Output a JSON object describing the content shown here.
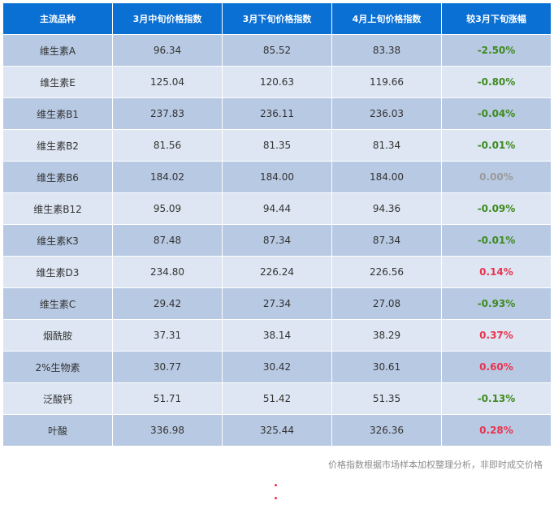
{
  "table": {
    "headers": [
      "主流品种",
      "3月中旬价格指数",
      "3月下旬价格指数",
      "4月上旬价格指数",
      "较3月下旬涨幅"
    ],
    "rows": [
      {
        "name": "维生素A",
        "mid_mar": "96.34",
        "late_mar": "85.52",
        "early_apr": "83.38",
        "change": "-2.50%",
        "direction": "down"
      },
      {
        "name": "维生素E",
        "mid_mar": "125.04",
        "late_mar": "120.63",
        "early_apr": "119.66",
        "change": "-0.80%",
        "direction": "down"
      },
      {
        "name": "维生素B1",
        "mid_mar": "237.83",
        "late_mar": "236.11",
        "early_apr": "236.03",
        "change": "-0.04%",
        "direction": "down"
      },
      {
        "name": "维生素B2",
        "mid_mar": "81.56",
        "late_mar": "81.35",
        "early_apr": "81.34",
        "change": "-0.01%",
        "direction": "down"
      },
      {
        "name": "维生素B6",
        "mid_mar": "184.02",
        "late_mar": "184.00",
        "early_apr": "184.00",
        "change": "0.00%",
        "direction": "flat"
      },
      {
        "name": "维生素B12",
        "mid_mar": "95.09",
        "late_mar": "94.44",
        "early_apr": "94.36",
        "change": "-0.09%",
        "direction": "down"
      },
      {
        "name": "维生素K3",
        "mid_mar": "87.48",
        "late_mar": "87.34",
        "early_apr": "87.34",
        "change": "-0.01%",
        "direction": "down"
      },
      {
        "name": "维生素D3",
        "mid_mar": "234.80",
        "late_mar": "226.24",
        "early_apr": "226.56",
        "change": "0.14%",
        "direction": "up"
      },
      {
        "name": "维生素C",
        "mid_mar": "29.42",
        "late_mar": "27.34",
        "early_apr": "27.08",
        "change": "-0.93%",
        "direction": "down"
      },
      {
        "name": "烟酰胺",
        "mid_mar": "37.31",
        "late_mar": "38.14",
        "early_apr": "38.29",
        "change": "0.37%",
        "direction": "up"
      },
      {
        "name": "2%生物素",
        "mid_mar": "30.77",
        "late_mar": "30.42",
        "early_apr": "30.61",
        "change": "0.60%",
        "direction": "up"
      },
      {
        "name": "泛酸钙",
        "mid_mar": "51.71",
        "late_mar": "51.42",
        "early_apr": "51.35",
        "change": "-0.13%",
        "direction": "down"
      },
      {
        "name": "叶酸",
        "mid_mar": "336.98",
        "late_mar": "325.44",
        "early_apr": "326.36",
        "change": "0.28%",
        "direction": "up"
      }
    ]
  },
  "footnote": "价格指数根据市场样本加权整理分析，非即时成交价格",
  "colors": {
    "header_bg": "#0b70d4",
    "row_dark": "#b8c9e3",
    "row_light": "#dde6f2",
    "down": "#3d8a1f",
    "up": "#e8344e",
    "flat": "#9a9a9a"
  }
}
